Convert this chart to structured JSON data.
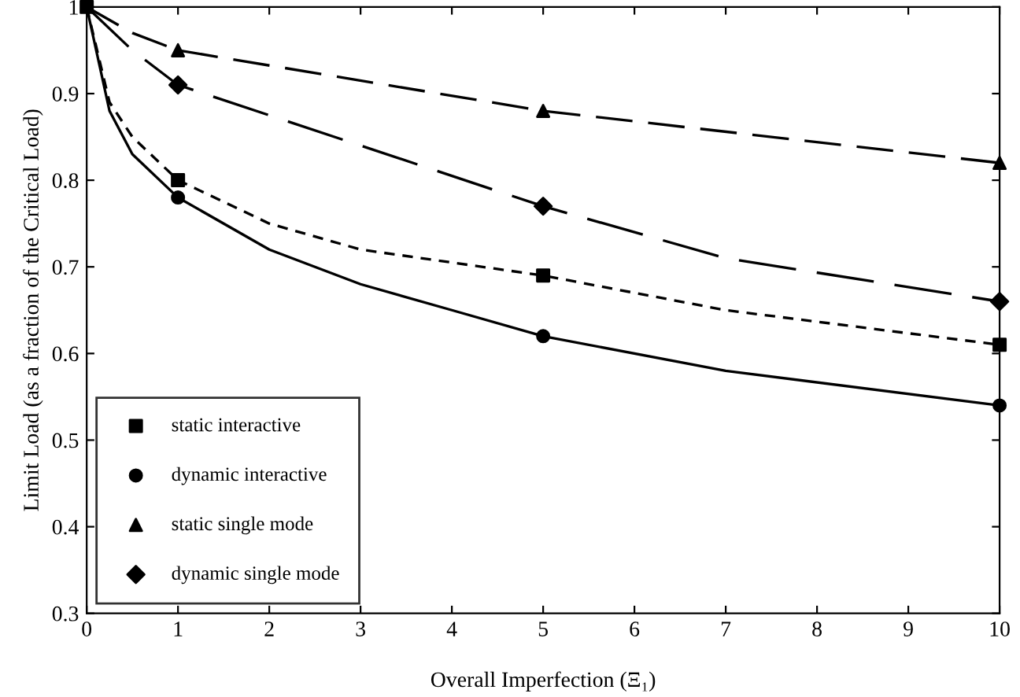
{
  "chart_data": {
    "type": "line",
    "xlabel": "Overall Imperfection (Ξ₁)",
    "ylabel": "Limit Load (as a fraction of the Critical Load)",
    "xlim": [
      0,
      10
    ],
    "ylim": [
      0.3,
      1
    ],
    "xticks": [
      0,
      1,
      2,
      3,
      4,
      5,
      6,
      7,
      8,
      9,
      10
    ],
    "yticks": [
      0.3,
      0.4,
      0.5,
      0.6,
      0.7,
      0.8,
      0.9,
      1
    ],
    "grid": false,
    "legend": "bottom left",
    "series": [
      {
        "color": "#000000",
        "line_style": "dashed",
        "marker": "none",
        "x": [
          0,
          0.25,
          0.5,
          1,
          2,
          3,
          5,
          7,
          10
        ],
        "values": [
          1,
          0.89,
          0.85,
          0.8,
          0.75,
          0.72,
          0.69,
          0.65,
          0.61
        ]
      },
      {
        "color": "#000000",
        "line_style": "solid",
        "marker": "none",
        "x": [
          0,
          0.25,
          0.5,
          1,
          2,
          3,
          4,
          5,
          7,
          10
        ],
        "values": [
          1,
          0.88,
          0.83,
          0.78,
          0.72,
          0.68,
          0.65,
          0.62,
          0.58,
          0.54
        ]
      },
      {
        "color": "#000000",
        "line_style": "dashed",
        "marker": "none",
        "x": [
          0,
          0.5,
          1,
          5,
          10
        ],
        "values": [
          1,
          0.97,
          0.95,
          0.88,
          0.82
        ]
      },
      {
        "color": "#000000",
        "line_style": "dashed",
        "marker": "none",
        "x": [
          0,
          0.5,
          1,
          3,
          5,
          7,
          10
        ],
        "values": [
          1,
          0.95,
          0.91,
          0.84,
          0.77,
          0.71,
          0.66
        ]
      },
      {
        "type": "scatter",
        "name": "static interactive",
        "color": "#000000",
        "marker": "square",
        "x": [
          0,
          1,
          5,
          10
        ],
        "values": [
          1,
          0.8,
          0.69,
          0.61
        ]
      },
      {
        "type": "scatter",
        "name": "dynamic interactive",
        "color": "#000000",
        "marker": "circle",
        "x": [
          1,
          5,
          10
        ],
        "values": [
          0.78,
          0.62,
          0.54
        ]
      },
      {
        "type": "scatter",
        "name": "static single mode",
        "color": "#000000",
        "marker": "triangle",
        "x": [
          1,
          5,
          10
        ],
        "values": [
          0.95,
          0.88,
          0.82
        ]
      },
      {
        "type": "scatter",
        "name": "dynamic single mode",
        "color": "#000000",
        "marker": "diamond",
        "x": [
          1,
          5,
          10
        ],
        "values": [
          0.91,
          0.77,
          0.66
        ]
      }
    ]
  }
}
